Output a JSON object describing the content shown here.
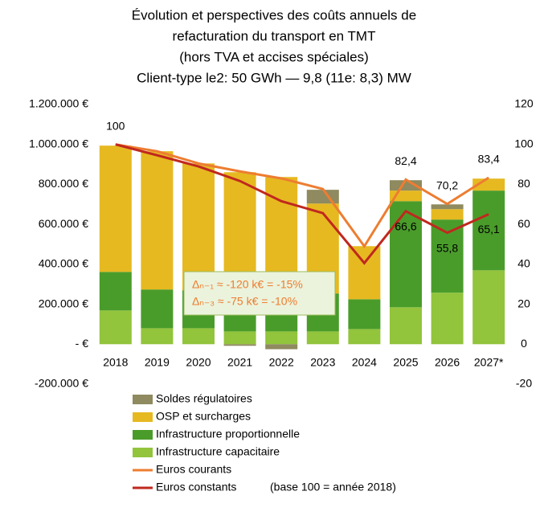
{
  "chart_data": {
    "type": "bar",
    "title": [
      "Évolution et perspectives des coûts annuels de",
      "refacturation du transport en TMT",
      "(hors TVA et accises spéciales)",
      "Client-type le2: 50 GWh — 9,8 (11e: 8,3) MW"
    ],
    "categories": [
      "2018",
      "2019",
      "2020",
      "2021",
      "2022",
      "2023",
      "2024",
      "2025",
      "2026",
      "2027*"
    ],
    "series": [
      {
        "name": "Soldes régulatoires",
        "color": "#8f8a5f",
        "values": [
          0,
          0,
          0,
          -8000,
          -25000,
          69000,
          0,
          52000,
          24000,
          0
        ]
      },
      {
        "name": "OSP et surcharges",
        "color": "#e6b921",
        "values": [
          632000,
          692000,
          635000,
          607000,
          578000,
          450000,
          266000,
          53000,
          52000,
          60000
        ]
      },
      {
        "name": "Infrastructure proportionnelle",
        "color": "#4a9c2a",
        "values": [
          193000,
          194000,
          190000,
          190000,
          195000,
          190000,
          149000,
          531000,
          366000,
          399000
        ]
      },
      {
        "name": "Infrastructure capacitaire",
        "color": "#92c43c",
        "values": [
          169000,
          80000,
          80000,
          64000,
          64000,
          64000,
          76000,
          185000,
          258000,
          370000
        ]
      },
      {
        "name": "Euros courants",
        "type": "line",
        "axis": "y2",
        "color": "#ed7d31",
        "values": [
          100,
          96.6,
          90.5,
          86.5,
          83,
          77.7,
          49,
          82.4,
          70.2,
          83.4
        ],
        "value_labels": [
          "100",
          null,
          null,
          null,
          null,
          null,
          null,
          "82,4",
          "70,2",
          "83,4"
        ]
      },
      {
        "name": "Euros constants",
        "type": "line",
        "axis": "y2",
        "color": "#c0281e",
        "values": [
          100,
          94.6,
          89,
          81.7,
          71.6,
          65.6,
          40.6,
          66.6,
          55.8,
          65.1
        ],
        "value_labels": [
          null,
          null,
          null,
          null,
          null,
          null,
          null,
          "66,6",
          "55,8",
          "65,1"
        ]
      }
    ],
    "ylim": [
      -200000,
      1200000
    ],
    "yticks": [
      {
        "value": -200000,
        "label": "-200.000 €"
      },
      {
        "value": 0,
        "label": "-   €"
      },
      {
        "value": 200000,
        "label": "200.000 €"
      },
      {
        "value": 400000,
        "label": "400.000 €"
      },
      {
        "value": 600000,
        "label": "600.000 €"
      },
      {
        "value": 800000,
        "label": "800.000 €"
      },
      {
        "value": 1000000,
        "label": "1.000.000 €"
      },
      {
        "value": 1200000,
        "label": "1.200.000 €"
      }
    ],
    "y2lim": [
      -20,
      120
    ],
    "y2ticks": [
      -20,
      0,
      20,
      40,
      60,
      80,
      100,
      120
    ],
    "grid": false,
    "annotations": [
      "Δₙ₋₁ ≈ -120 k€ = -15%",
      "Δₙ₋₃ ≈ -75 k€ = -10%",
      "(base 100 = année 2018)"
    ]
  }
}
